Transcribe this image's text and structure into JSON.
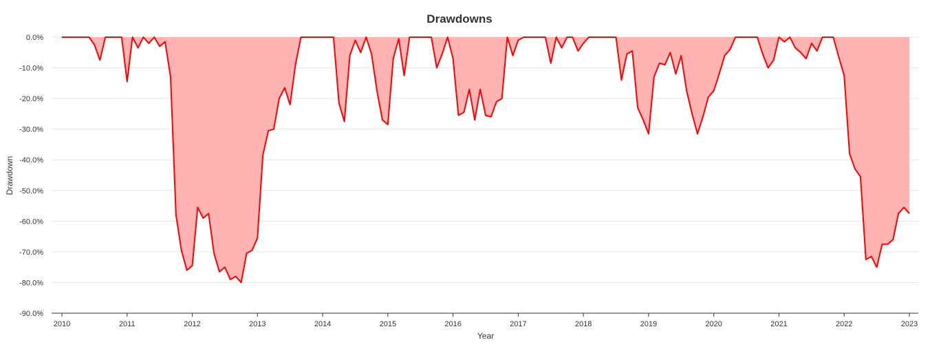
{
  "chart_data": {
    "type": "area",
    "title": "Drawdowns",
    "xlabel": "Year",
    "ylabel": "Drawdown",
    "x_ticks": [
      "2010",
      "2011",
      "2012",
      "2013",
      "2014",
      "2015",
      "2016",
      "2017",
      "2018",
      "2019",
      "2020",
      "2021",
      "2022",
      "2023"
    ],
    "y_ticks": [
      "0.0%",
      "-10.0%",
      "-20.0%",
      "-30.0%",
      "-40.0%",
      "-50.0%",
      "-60.0%",
      "-70.0%",
      "-80.0%",
      "-90.0%"
    ],
    "xlim": [
      2010,
      2023
    ],
    "ylim": [
      -90,
      0
    ],
    "grid": true,
    "colors": {
      "line": "#ff0000",
      "fill": "#ffb3b3",
      "grid": "#e6e6e6",
      "axis": "#333333"
    },
    "series": [
      {
        "x": [
          2010.0,
          2010.083,
          2010.167,
          2010.25,
          2010.333,
          2010.417,
          2010.5,
          2010.583,
          2010.667,
          2010.75,
          2010.833,
          2010.917,
          2011.0,
          2011.083,
          2011.167,
          2011.25,
          2011.333,
          2011.417,
          2011.5,
          2011.583,
          2011.667,
          2011.75,
          2011.833,
          2011.917,
          2012.0,
          2012.083,
          2012.167,
          2012.25,
          2012.333,
          2012.417,
          2012.5,
          2012.583,
          2012.667,
          2012.75,
          2012.833,
          2012.917,
          2013.0,
          2013.083,
          2013.167,
          2013.25,
          2013.333,
          2013.417,
          2013.5,
          2013.583,
          2013.667,
          2013.75,
          2013.833,
          2013.917,
          2014.0,
          2014.083,
          2014.167,
          2014.25,
          2014.333,
          2014.417,
          2014.5,
          2014.583,
          2014.667,
          2014.75,
          2014.833,
          2014.917,
          2015.0,
          2015.083,
          2015.167,
          2015.25,
          2015.333,
          2015.417,
          2015.5,
          2015.583,
          2015.667,
          2015.75,
          2015.833,
          2015.917,
          2016.0,
          2016.083,
          2016.167,
          2016.25,
          2016.333,
          2016.417,
          2016.5,
          2016.583,
          2016.667,
          2016.75,
          2016.833,
          2016.917,
          2017.0,
          2017.083,
          2017.167,
          2017.25,
          2017.333,
          2017.417,
          2017.5,
          2017.583,
          2017.667,
          2017.75,
          2017.833,
          2017.917,
          2018.0,
          2018.083,
          2018.167,
          2018.25,
          2018.333,
          2018.417,
          2018.5,
          2018.583,
          2018.667,
          2018.75,
          2018.833,
          2018.917,
          2019.0,
          2019.083,
          2019.167,
          2019.25,
          2019.333,
          2019.417,
          2019.5,
          2019.583,
          2019.667,
          2019.75,
          2019.833,
          2019.917,
          2020.0,
          2020.083,
          2020.167,
          2020.25,
          2020.333,
          2020.417,
          2020.5,
          2020.583,
          2020.667,
          2020.75,
          2020.833,
          2020.917,
          2021.0,
          2021.083,
          2021.167,
          2021.25,
          2021.333,
          2021.417,
          2021.5,
          2021.583,
          2021.667,
          2021.75,
          2021.833,
          2021.917,
          2022.0,
          2022.083,
          2022.167,
          2022.25,
          2022.333,
          2022.417,
          2022.5,
          2022.583,
          2022.667,
          2022.75,
          2022.833,
          2022.917,
          2023.0
        ],
        "values": [
          0,
          0,
          0,
          0,
          0,
          0,
          -2.5,
          -7.5,
          0,
          0,
          0,
          0,
          -14.5,
          0,
          -3.5,
          0,
          -2.0,
          0,
          -3.0,
          -1.5,
          -13.0,
          -58.0,
          -69.5,
          -76.0,
          -74.5,
          -55.5,
          -59.0,
          -57.5,
          -70.5,
          -76.5,
          -75.0,
          -79.0,
          -78.0,
          -80.0,
          -70.5,
          -69.5,
          -65.5,
          -38.5,
          -30.5,
          -30.0,
          -20.0,
          -16.5,
          -22.0,
          -9.0,
          0,
          0,
          0,
          0,
          0,
          0,
          0,
          -21.5,
          -27.5,
          -6.0,
          -1.0,
          -5.0,
          0,
          -5.5,
          -17.5,
          -27.0,
          -28.5,
          -7.0,
          -0.5,
          -12.5,
          0,
          0,
          0,
          0,
          0,
          -10.0,
          -5.5,
          0,
          -7.0,
          -25.5,
          -24.5,
          -17.0,
          -27.0,
          -17.0,
          -25.5,
          -26.0,
          -21.0,
          -20.0,
          0,
          -6.0,
          -1.0,
          0,
          0,
          0,
          0,
          0,
          -8.5,
          0,
          -3.5,
          0,
          0,
          -4.5,
          -2.0,
          0,
          0,
          0,
          0,
          0,
          0,
          -14.0,
          -5.5,
          -4.5,
          -23.0,
          -27.0,
          -31.5,
          -13.0,
          -8.5,
          -9.0,
          -5.0,
          -12.0,
          -6.0,
          -17.5,
          -25.0,
          -31.5,
          -26.0,
          -19.5,
          -17.5,
          -12.0,
          -6.0,
          -4.0,
          0,
          0,
          0,
          0,
          0,
          -5.5,
          -10.0,
          -7.5,
          0,
          -1.5,
          0,
          -3.5,
          -5.0,
          -7.0,
          -2.0,
          -4.5,
          0,
          0,
          0,
          -6.5,
          -12.5,
          -38.0,
          -43.0,
          -45.5,
          -72.5,
          -71.5,
          -75.0,
          -67.5,
          -67.5,
          -66.0,
          -57.5,
          -55.5,
          -57.5
        ]
      }
    ]
  }
}
